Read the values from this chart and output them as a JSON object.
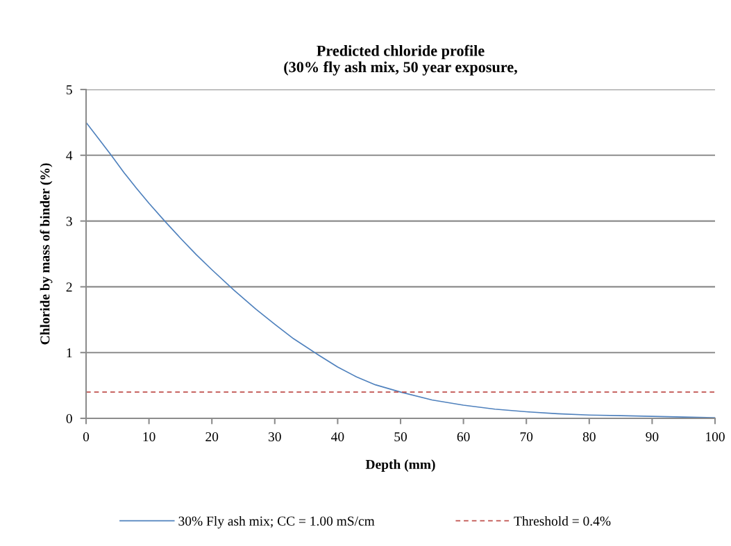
{
  "chart_data": {
    "type": "line",
    "title": "Predicted chloride profile\n(30% fly ash mix, 50 year exposure,",
    "xlabel": "Depth (mm)",
    "ylabel": "Chloride by mass of binder (%)",
    "x": [
      0,
      2,
      4,
      6,
      8,
      10,
      12.5,
      15,
      17.5,
      20,
      23.5,
      27,
      30,
      33,
      37,
      40,
      43,
      46,
      50,
      55,
      60,
      65,
      70,
      75,
      80,
      85,
      90,
      95,
      100
    ],
    "series": [
      {
        "name": "30% Fly ash mix; CC = 1.00 mS/cm",
        "color": "#4f81bd",
        "values": [
          4.5,
          4.25,
          4.0,
          3.74,
          3.5,
          3.27,
          3.0,
          2.74,
          2.49,
          2.26,
          1.95,
          1.66,
          1.43,
          1.21,
          0.96,
          0.78,
          0.63,
          0.51,
          0.4,
          0.28,
          0.2,
          0.14,
          0.1,
          0.07,
          0.05,
          0.04,
          0.03,
          0.02,
          0.01
        ]
      }
    ],
    "ref_lines": [
      {
        "axis": "y",
        "value": 0.4,
        "label": "Threshold = 0.4%",
        "color": "#c0504d",
        "line_style": "dashed"
      }
    ],
    "xlim": [
      0,
      100
    ],
    "xticks": [
      0,
      10,
      20,
      30,
      40,
      50,
      60,
      70,
      80,
      90,
      100
    ],
    "ylim": [
      0,
      5
    ],
    "yticks": [
      0,
      1,
      2,
      3,
      4,
      5
    ],
    "grid": "y",
    "legend": "bottom",
    "marker": "none",
    "line_style": "solid"
  }
}
